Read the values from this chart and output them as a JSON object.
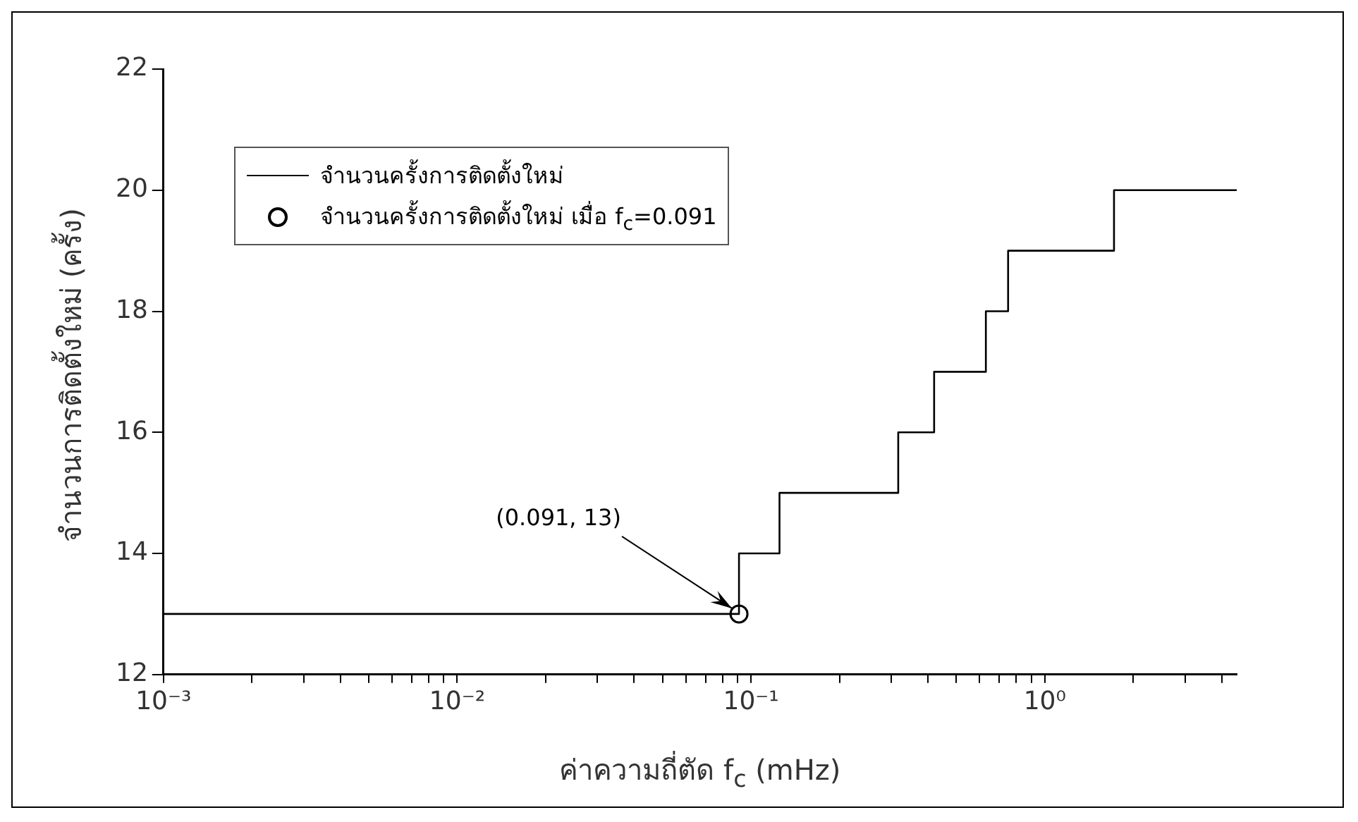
{
  "chart_data": {
    "type": "step",
    "xlabel": "ค่าความถี่ตัด f$_{c}$ (mHz)",
    "ylabel": "จำนวนการติดตั้งใหม่ (ครั้ง)",
    "log": "x",
    "grid": false,
    "legend": "top left",
    "xlim": [
      0.001,
      4.5
    ],
    "ylim": [
      12,
      22
    ],
    "xticks": [
      {
        "value": 0.001,
        "label": "10⁻³"
      },
      {
        "value": 0.002,
        "label": null
      },
      {
        "value": 0.003,
        "label": null
      },
      {
        "value": 0.004,
        "label": null
      },
      {
        "value": 0.005,
        "label": null
      },
      {
        "value": 0.006,
        "label": null
      },
      {
        "value": 0.007,
        "label": null
      },
      {
        "value": 0.008,
        "label": null
      },
      {
        "value": 0.009,
        "label": null
      },
      {
        "value": 0.01,
        "label": "10⁻²"
      },
      {
        "value": 0.02,
        "label": null
      },
      {
        "value": 0.03,
        "label": null
      },
      {
        "value": 0.04,
        "label": null
      },
      {
        "value": 0.05,
        "label": null
      },
      {
        "value": 0.06,
        "label": null
      },
      {
        "value": 0.07,
        "label": null
      },
      {
        "value": 0.08,
        "label": null
      },
      {
        "value": 0.09,
        "label": null
      },
      {
        "value": 0.1,
        "label": "10⁻¹"
      },
      {
        "value": 0.2,
        "label": null
      },
      {
        "value": 0.3,
        "label": null
      },
      {
        "value": 0.4,
        "label": null
      },
      {
        "value": 0.5,
        "label": null
      },
      {
        "value": 0.6,
        "label": null
      },
      {
        "value": 0.7,
        "label": null
      },
      {
        "value": 0.8,
        "label": null
      },
      {
        "value": 0.9,
        "label": null
      },
      {
        "value": 1,
        "label": "10⁰"
      },
      {
        "value": 2,
        "label": null
      },
      {
        "value": 3,
        "label": null
      },
      {
        "value": 4,
        "label": null
      }
    ],
    "yticks": [
      12,
      14,
      16,
      18,
      20,
      22
    ],
    "series": [
      {
        "name": "จำนวนครั้งการติดตั้งใหม่",
        "color": "#000000",
        "marker": "none",
        "x": [
          0.001,
          0.091,
          0.125,
          0.317,
          0.42,
          0.63,
          0.75,
          1.72,
          4.5
        ],
        "values": [
          13,
          14,
          15,
          16,
          17,
          18,
          19,
          20,
          20
        ]
      },
      {
        "type": "scatter",
        "name": "จำนวนครั้งการติดตั้งใหม่ เมื่อ f$_{c}$=0.091",
        "color": "#000000",
        "marker": "circle",
        "x": [
          0.091
        ],
        "values": [
          13
        ]
      }
    ],
    "annotations": [
      {
        "text": "(0.091, 13)",
        "x": 0.091,
        "y": 13
      }
    ]
  }
}
